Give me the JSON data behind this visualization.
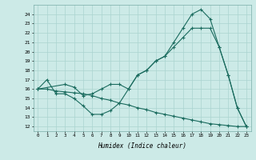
{
  "bg_color": "#cceae7",
  "line_color": "#1a6b5e",
  "grid_color": "#aad4cf",
  "xlabel": "Humidex (Indice chaleur)",
  "xlim": [
    -0.5,
    23.5
  ],
  "ylim": [
    11.5,
    25.0
  ],
  "xticks": [
    0,
    1,
    2,
    3,
    4,
    5,
    6,
    7,
    8,
    9,
    10,
    11,
    12,
    13,
    14,
    15,
    16,
    17,
    18,
    19,
    20,
    21,
    22,
    23
  ],
  "yticks": [
    12,
    13,
    14,
    15,
    16,
    17,
    18,
    19,
    20,
    21,
    22,
    23,
    24
  ],
  "line1_x": [
    0,
    1,
    2,
    3,
    4,
    5,
    6,
    7,
    8,
    9,
    10,
    11,
    12,
    13,
    14,
    15,
    16,
    17,
    18,
    19,
    20,
    21,
    22,
    23
  ],
  "line1_y": [
    16,
    17,
    15.5,
    15.5,
    15.0,
    14.2,
    13.3,
    13.3,
    13.7,
    14.5,
    16.0,
    17.5,
    18.0,
    19.0,
    19.5,
    21.0,
    22.5,
    24.0,
    24.5,
    23.5,
    20.5,
    17.5,
    14.0,
    12.0
  ],
  "line2_x": [
    0,
    3,
    4,
    5,
    6,
    7,
    8,
    9,
    10,
    11,
    12,
    13,
    14,
    15,
    16,
    17,
    18,
    19,
    20,
    21,
    22,
    23
  ],
  "line2_y": [
    16,
    16.5,
    16.2,
    15.3,
    15.5,
    16.0,
    16.5,
    16.5,
    16.0,
    17.5,
    18.0,
    19.0,
    19.5,
    20.5,
    21.5,
    22.5,
    22.5,
    22.5,
    20.5,
    17.5,
    14.0,
    12.0
  ],
  "line3_x": [
    0,
    1,
    2,
    3,
    4,
    5,
    6,
    7,
    8,
    9,
    10,
    11,
    12,
    13,
    14,
    15,
    16,
    17,
    18,
    19,
    20,
    21,
    22,
    23
  ],
  "line3_y": [
    16.0,
    16.0,
    15.8,
    15.7,
    15.6,
    15.5,
    15.3,
    15.0,
    14.8,
    14.5,
    14.3,
    14.0,
    13.8,
    13.5,
    13.3,
    13.1,
    12.9,
    12.7,
    12.5,
    12.3,
    12.2,
    12.1,
    12.0,
    12.0
  ]
}
